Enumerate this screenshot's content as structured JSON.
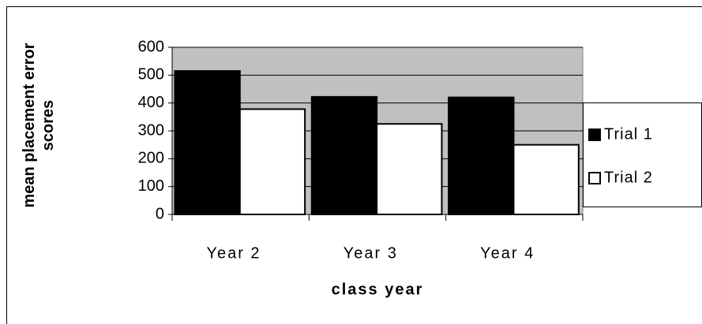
{
  "chart_data": {
    "type": "bar",
    "x_label": "class year",
    "y_label": "mean placement error scores",
    "categories": [
      "Year 2",
      "Year 3",
      "Year 4"
    ],
    "series": [
      {
        "name": "Trial 1",
        "color": "#000000",
        "values": [
          515,
          422,
          420
        ]
      },
      {
        "name": "Trial 2",
        "color": "#ffffff",
        "values": [
          378,
          325,
          250
        ]
      }
    ],
    "ylim": [
      0,
      600
    ],
    "yticks": [
      0,
      100,
      200,
      300,
      400,
      500,
      600
    ],
    "grid": true,
    "plot_background": "#c0c0c0",
    "legend": "right"
  }
}
